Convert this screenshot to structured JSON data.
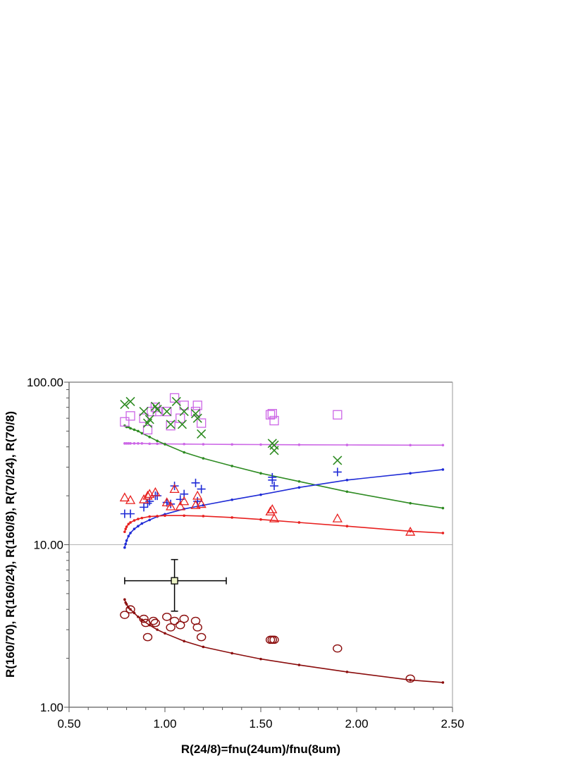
{
  "chart_data": {
    "type": "scatter",
    "title": "",
    "xlabel": "R(24/8)=fnu(24um)/fnu(8um)",
    "ylabel": "R(160/70), R(160/24), R(160/8), R(70/24), R(70/8)",
    "xlim": [
      0.5,
      2.5
    ],
    "ylim": [
      1.0,
      100.0
    ],
    "y_scale": "log",
    "x_ticks": [
      "0.50",
      "1.00",
      "1.50",
      "2.00",
      "2.50"
    ],
    "y_ticks": [
      {
        "value": 1,
        "label": "1.00"
      },
      {
        "value": 10,
        "label": "10.00"
      },
      {
        "value": 100,
        "label": "100.00"
      }
    ],
    "grid": "horizontal major only",
    "legend": "none",
    "series": [
      {
        "marker": "square-open",
        "color": "#cc66e6",
        "points": [
          [
            0.79,
            57
          ],
          [
            0.82,
            62
          ],
          [
            0.89,
            60
          ],
          [
            0.91,
            51
          ],
          [
            0.93,
            66
          ],
          [
            0.95,
            70
          ],
          [
            0.96,
            66
          ],
          [
            1.01,
            66
          ],
          [
            1.03,
            54
          ],
          [
            1.05,
            80
          ],
          [
            1.08,
            60
          ],
          [
            1.1,
            72
          ],
          [
            1.16,
            66
          ],
          [
            1.17,
            72
          ],
          [
            1.19,
            56
          ],
          [
            1.55,
            63
          ],
          [
            1.56,
            64
          ],
          [
            1.57,
            58
          ],
          [
            1.9,
            63
          ]
        ],
        "model": {
          "x": [
            0.79,
            0.8,
            0.81,
            0.82,
            0.84,
            0.86,
            0.88,
            0.92,
            0.96,
            1.0,
            1.1,
            1.2,
            1.35,
            1.5,
            1.7,
            1.95,
            2.28,
            2.45
          ],
          "y": [
            42.0,
            42.0,
            42.0,
            42.0,
            42.0,
            42.0,
            42.0,
            41.8,
            41.8,
            41.7,
            41.6,
            41.5,
            41.4,
            41.3,
            41.2,
            41.1,
            41.0,
            41.0
          ]
        }
      },
      {
        "marker": "x",
        "color": "#2e8b22",
        "points": [
          [
            0.79,
            73
          ],
          [
            0.82,
            76
          ],
          [
            0.89,
            66
          ],
          [
            0.91,
            56
          ],
          [
            0.92,
            59
          ],
          [
            0.95,
            71
          ],
          [
            0.96,
            68
          ],
          [
            1.01,
            66
          ],
          [
            1.03,
            55
          ],
          [
            1.06,
            76
          ],
          [
            1.09,
            55
          ],
          [
            1.1,
            66
          ],
          [
            1.16,
            64
          ],
          [
            1.17,
            60
          ],
          [
            1.19,
            48
          ],
          [
            1.56,
            42
          ],
          [
            1.57,
            38
          ],
          [
            1.57,
            41
          ],
          [
            1.9,
            33
          ]
        ],
        "model": {
          "x": [
            0.79,
            0.8,
            0.81,
            0.82,
            0.84,
            0.86,
            0.88,
            0.92,
            0.96,
            1.0,
            1.1,
            1.2,
            1.35,
            1.5,
            1.7,
            1.95,
            2.28,
            2.45
          ],
          "y": [
            54,
            53,
            53,
            52,
            51,
            50,
            48.5,
            46,
            43.5,
            41.5,
            37,
            34,
            30.5,
            27.5,
            24.5,
            21.2,
            18.0,
            16.8
          ]
        }
      },
      {
        "marker": "plus",
        "color": "#1f2bd6",
        "points": [
          [
            0.79,
            15.5
          ],
          [
            0.82,
            15.5
          ],
          [
            0.89,
            17
          ],
          [
            0.91,
            18
          ],
          [
            0.92,
            18.5
          ],
          [
            0.95,
            20
          ],
          [
            0.96,
            20
          ],
          [
            1.01,
            18.2
          ],
          [
            1.03,
            17.8
          ],
          [
            1.05,
            23
          ],
          [
            1.08,
            19
          ],
          [
            1.1,
            20.5
          ],
          [
            1.16,
            24
          ],
          [
            1.17,
            18.5
          ],
          [
            1.19,
            22
          ],
          [
            1.56,
            26
          ],
          [
            1.56,
            25
          ],
          [
            1.57,
            23
          ],
          [
            1.9,
            28
          ]
        ],
        "model": {
          "x": [
            0.79,
            0.795,
            0.8,
            0.81,
            0.82,
            0.84,
            0.86,
            0.88,
            0.92,
            0.96,
            1.0,
            1.1,
            1.2,
            1.35,
            1.5,
            1.7,
            1.95,
            2.28,
            2.45
          ],
          "y": [
            9.6,
            10.1,
            10.6,
            11.3,
            11.8,
            12.5,
            13.0,
            13.5,
            14.2,
            14.9,
            15.4,
            16.6,
            17.5,
            18.9,
            20.3,
            22.5,
            25.0,
            27.5,
            29.0
          ]
        }
      },
      {
        "marker": "triangle-open",
        "color": "#e8201f",
        "points": [
          [
            0.79,
            19.5
          ],
          [
            0.82,
            18.8
          ],
          [
            0.89,
            19
          ],
          [
            0.91,
            20
          ],
          [
            0.92,
            20.5
          ],
          [
            0.95,
            21
          ],
          [
            1.01,
            18.2
          ],
          [
            1.03,
            17.2
          ],
          [
            1.05,
            22
          ],
          [
            1.08,
            17.2
          ],
          [
            1.1,
            18.5
          ],
          [
            1.16,
            17.5
          ],
          [
            1.17,
            20
          ],
          [
            1.19,
            17.8
          ],
          [
            1.55,
            16
          ],
          [
            1.56,
            16.5
          ],
          [
            1.57,
            14.5
          ],
          [
            1.9,
            14.5
          ],
          [
            2.28,
            12.0
          ]
        ],
        "model": {
          "x": [
            0.79,
            0.795,
            0.8,
            0.81,
            0.82,
            0.84,
            0.86,
            0.88,
            0.92,
            0.96,
            1.0,
            1.1,
            1.2,
            1.35,
            1.5,
            1.7,
            1.95,
            2.28,
            2.45
          ],
          "y": [
            12.0,
            12.5,
            12.9,
            13.4,
            13.7,
            14.1,
            14.4,
            14.6,
            14.9,
            15.0,
            15.1,
            15.1,
            15.0,
            14.7,
            14.3,
            13.7,
            13.0,
            12.1,
            11.8
          ]
        }
      },
      {
        "marker": "circle-open",
        "color": "#8b0d0d",
        "points": [
          [
            0.79,
            3.7
          ],
          [
            0.82,
            4.0
          ],
          [
            0.89,
            3.5
          ],
          [
            0.9,
            3.3
          ],
          [
            0.91,
            2.7
          ],
          [
            0.94,
            3.4
          ],
          [
            0.95,
            3.3
          ],
          [
            1.01,
            3.6
          ],
          [
            1.03,
            3.1
          ],
          [
            1.05,
            3.4
          ],
          [
            1.08,
            3.2
          ],
          [
            1.1,
            3.5
          ],
          [
            1.16,
            3.4
          ],
          [
            1.17,
            3.1
          ],
          [
            1.19,
            2.7
          ],
          [
            1.55,
            2.6
          ],
          [
            1.56,
            2.6
          ],
          [
            1.57,
            2.6
          ],
          [
            1.9,
            2.3
          ],
          [
            2.28,
            1.5
          ]
        ],
        "model": {
          "x": [
            0.79,
            0.795,
            0.8,
            0.81,
            0.82,
            0.84,
            0.86,
            0.88,
            0.92,
            0.96,
            1.0,
            1.1,
            1.2,
            1.35,
            1.5,
            1.7,
            1.95,
            2.28,
            2.45
          ],
          "y": [
            4.6,
            4.4,
            4.3,
            4.1,
            4.0,
            3.8,
            3.6,
            3.45,
            3.2,
            3.0,
            2.85,
            2.55,
            2.35,
            2.15,
            1.98,
            1.82,
            1.65,
            1.47,
            1.42
          ]
        }
      }
    ],
    "error_point": {
      "x": 1.05,
      "y": 6.0,
      "x_err": [
        0.79,
        1.32
      ],
      "y_err": [
        3.9,
        8.1
      ],
      "marker": "square-filled",
      "fill": "#eef5c8",
      "color": "#000000"
    }
  }
}
